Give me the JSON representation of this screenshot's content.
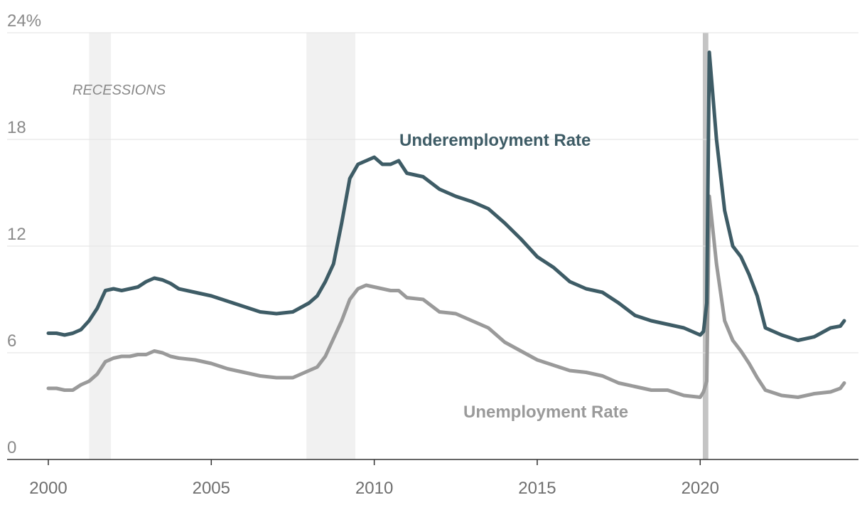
{
  "chart_data": {
    "type": "line",
    "title": "",
    "xlabel": "",
    "ylabel": "",
    "xlim": [
      2000,
      2024.5
    ],
    "ylim": [
      0,
      24
    ],
    "y_ticks": [
      0,
      6,
      12,
      18,
      24
    ],
    "y_tick_labels": [
      "0",
      "6",
      "12",
      "18",
      "24%"
    ],
    "x_ticks": [
      2000,
      2005,
      2010,
      2015,
      2020
    ],
    "x_tick_labels": [
      "2000",
      "2005",
      "2010",
      "2015",
      "2020"
    ],
    "grid": true,
    "recessions_label": "RECESSIONS",
    "recessions": [
      {
        "start": 2001.25,
        "end": 2001.92
      },
      {
        "start": 2007.92,
        "end": 2009.42
      },
      {
        "start": 2020.08,
        "end": 2020.25
      }
    ],
    "series": [
      {
        "name": "Underemployment Rate",
        "color": "#3e5c66",
        "x": [
          2000.0,
          2000.25,
          2000.5,
          2000.75,
          2001.0,
          2001.25,
          2001.5,
          2001.75,
          2002.0,
          2002.25,
          2002.5,
          2002.75,
          2003.0,
          2003.25,
          2003.5,
          2003.75,
          2004.0,
          2004.5,
          2005.0,
          2005.5,
          2006.0,
          2006.5,
          2007.0,
          2007.5,
          2008.0,
          2008.25,
          2008.5,
          2008.75,
          2009.0,
          2009.25,
          2009.5,
          2009.75,
          2010.0,
          2010.25,
          2010.5,
          2010.75,
          2011.0,
          2011.5,
          2012.0,
          2012.5,
          2013.0,
          2013.5,
          2014.0,
          2014.5,
          2015.0,
          2015.5,
          2016.0,
          2016.5,
          2017.0,
          2017.5,
          2018.0,
          2018.5,
          2019.0,
          2019.5,
          2020.0,
          2020.1,
          2020.2,
          2020.28,
          2020.5,
          2020.75,
          2021.0,
          2021.25,
          2021.5,
          2021.75,
          2022.0,
          2022.5,
          2023.0,
          2023.5,
          2024.0,
          2024.3,
          2024.42
        ],
        "values": [
          7.1,
          7.1,
          7.0,
          7.1,
          7.3,
          7.8,
          8.5,
          9.5,
          9.6,
          9.5,
          9.6,
          9.7,
          10.0,
          10.2,
          10.1,
          9.9,
          9.6,
          9.4,
          9.2,
          8.9,
          8.6,
          8.3,
          8.2,
          8.3,
          8.8,
          9.2,
          10.0,
          11.0,
          13.3,
          15.8,
          16.6,
          16.8,
          17.0,
          16.6,
          16.6,
          16.8,
          16.1,
          15.9,
          15.2,
          14.8,
          14.5,
          14.1,
          13.3,
          12.4,
          11.4,
          10.8,
          10.0,
          9.6,
          9.4,
          8.8,
          8.1,
          7.8,
          7.6,
          7.4,
          7.0,
          7.2,
          8.8,
          22.9,
          18.0,
          14.0,
          12.0,
          11.4,
          10.4,
          9.2,
          7.4,
          7.0,
          6.7,
          6.9,
          7.4,
          7.5,
          7.8
        ]
      },
      {
        "name": "Unemployment Rate",
        "color": "#9a9a9a",
        "x": [
          2000.0,
          2000.25,
          2000.5,
          2000.75,
          2001.0,
          2001.25,
          2001.5,
          2001.75,
          2002.0,
          2002.25,
          2002.5,
          2002.75,
          2003.0,
          2003.25,
          2003.5,
          2003.75,
          2004.0,
          2004.5,
          2005.0,
          2005.5,
          2006.0,
          2006.5,
          2007.0,
          2007.5,
          2008.0,
          2008.25,
          2008.5,
          2008.75,
          2009.0,
          2009.25,
          2009.5,
          2009.75,
          2010.0,
          2010.25,
          2010.5,
          2010.75,
          2011.0,
          2011.5,
          2012.0,
          2012.5,
          2013.0,
          2013.5,
          2014.0,
          2014.5,
          2015.0,
          2015.5,
          2016.0,
          2016.5,
          2017.0,
          2017.5,
          2018.0,
          2018.5,
          2019.0,
          2019.5,
          2020.0,
          2020.1,
          2020.2,
          2020.28,
          2020.5,
          2020.75,
          2021.0,
          2021.25,
          2021.5,
          2021.75,
          2022.0,
          2022.5,
          2023.0,
          2023.5,
          2024.0,
          2024.3,
          2024.42
        ],
        "values": [
          4.0,
          4.0,
          3.9,
          3.9,
          4.2,
          4.4,
          4.8,
          5.5,
          5.7,
          5.8,
          5.8,
          5.9,
          5.9,
          6.1,
          6.0,
          5.8,
          5.7,
          5.6,
          5.4,
          5.1,
          4.9,
          4.7,
          4.6,
          4.6,
          5.0,
          5.2,
          5.8,
          6.8,
          7.8,
          9.0,
          9.6,
          9.8,
          9.7,
          9.6,
          9.5,
          9.5,
          9.1,
          9.0,
          8.3,
          8.2,
          7.8,
          7.4,
          6.6,
          6.1,
          5.6,
          5.3,
          5.0,
          4.9,
          4.7,
          4.3,
          4.1,
          3.9,
          3.9,
          3.6,
          3.5,
          3.8,
          4.4,
          14.8,
          11.0,
          7.8,
          6.7,
          6.1,
          5.4,
          4.6,
          3.9,
          3.6,
          3.5,
          3.7,
          3.8,
          4.0,
          4.3
        ]
      }
    ]
  }
}
